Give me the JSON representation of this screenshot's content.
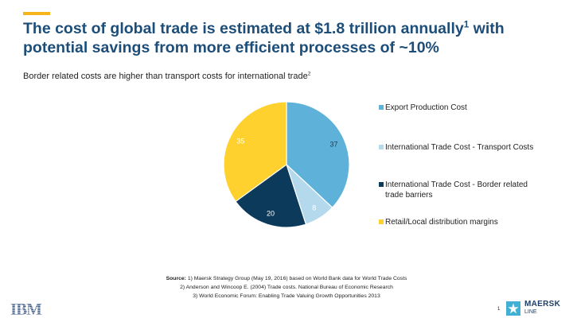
{
  "header": {
    "title": "The cost of global trade is estimated at $1.8 trillion annually",
    "title_sup": "1",
    "title_rest": " with potential savings from more efficient processes of ~10%",
    "subtitle": "Border related costs are higher than transport costs for international trade",
    "subtitle_sup": "2",
    "accent_color": "#f5b51b"
  },
  "chart_data": {
    "type": "pie",
    "categories": [
      "Export Production Cost",
      "International Trade Cost - Transport Costs",
      "International Trade Cost - Border related trade barriers",
      "Retail/Local distribution margins"
    ],
    "values": [
      37,
      8,
      20,
      35
    ],
    "data_labels": [
      "37",
      "8",
      "20",
      "35"
    ],
    "colors": [
      "#5eb2d9",
      "#b5d9ec",
      "#0b3a5b",
      "#fed12f"
    ],
    "label_colors": [
      "#1f3a52",
      "#ffffff",
      "#ffffff",
      "#ffffff"
    ],
    "legend_placement": "right"
  },
  "source": {
    "label": "Source:",
    "line1": " 1) Maersk Strategy Group (May 19, 2016) based on World Bank data for World Trade Costs",
    "line2": "2) Anderson and Wincoop E. (2004) Trade costs. National Bureau of Economic Research",
    "line3": "3) World Economic Forum: Enabling Trade Valuing Growth Opportunities 2013"
  },
  "footer": {
    "ibm_logo_text": "IBM",
    "page_number": "1",
    "maersk_line1": "MAERSK",
    "maersk_line2": "LINE",
    "maersk_color": "#1d3f66",
    "ibm_color": "#1f3f73"
  }
}
